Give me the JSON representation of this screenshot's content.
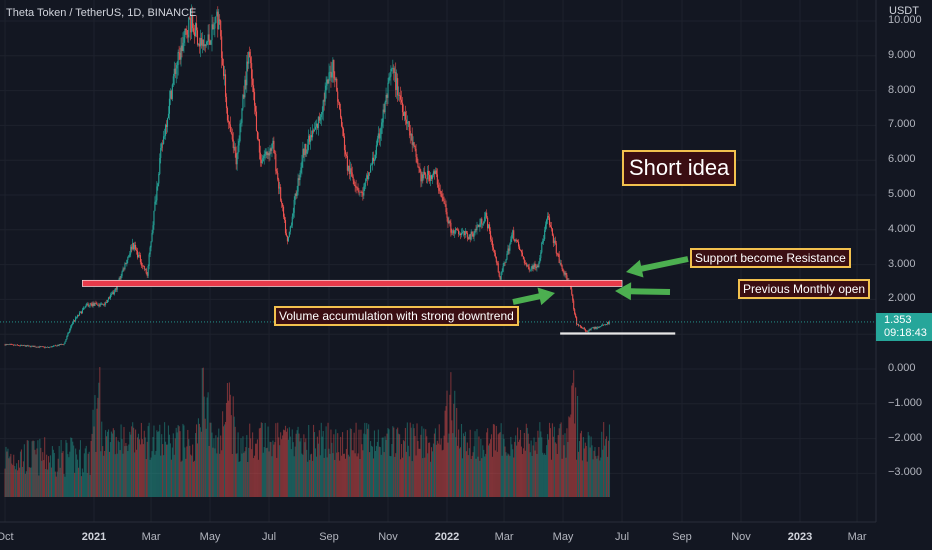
{
  "header": {
    "title": "Theta Token / TetherUS, 1D, BINANCE",
    "unit": "USDT"
  },
  "price_tag": {
    "value": "1.353",
    "countdown": "09:18:43"
  },
  "annotations": {
    "short_idea": "Short idea",
    "support_resistance": "Support become Resistance",
    "monthly_open": "Previous Monthly open",
    "volume_note": "Volume accumulation with strong downtrend"
  },
  "colors": {
    "background": "#131722",
    "up": "#26a69a",
    "down": "#ef5350",
    "resistance": "#e83a4a",
    "arrows": "#4caf50",
    "annotation_border": "#f2c14e"
  },
  "chart_data": {
    "type": "candlestick",
    "title": "Theta Token / TetherUS, 1D, BINANCE",
    "unit": "USDT",
    "yticks": [
      "10.000",
      "9.000",
      "8.000",
      "7.000",
      "6.000",
      "5.000",
      "4.000",
      "3.000",
      "2.000",
      "1.000",
      "0.000",
      "−1.000",
      "−2.000",
      "−3.000"
    ],
    "ylim": [
      -3.7,
      10.2
    ],
    "xticks": [
      {
        "label": "Oct",
        "bold": false
      },
      {
        "label": "2021",
        "bold": true
      },
      {
        "label": "Mar",
        "bold": false
      },
      {
        "label": "May",
        "bold": false
      },
      {
        "label": "Jul",
        "bold": false
      },
      {
        "label": "Sep",
        "bold": false
      },
      {
        "label": "Nov",
        "bold": false
      },
      {
        "label": "2022",
        "bold": true
      },
      {
        "label": "Mar",
        "bold": false
      },
      {
        "label": "May",
        "bold": false
      },
      {
        "label": "Jul",
        "bold": false
      },
      {
        "label": "Sep",
        "bold": false
      },
      {
        "label": "Nov",
        "bold": false
      },
      {
        "label": "2023",
        "bold": true
      },
      {
        "label": "Mar",
        "bold": false
      }
    ],
    "xtick_dates": [
      "2020-10-01",
      "2021-01-01",
      "2021-03-01",
      "2021-05-01",
      "2021-07-01",
      "2021-09-01",
      "2021-11-01",
      "2022-01-01",
      "2022-03-01",
      "2022-05-01",
      "2022-07-01",
      "2022-09-01",
      "2022-11-01",
      "2023-01-01",
      "2023-03-01"
    ],
    "price_path": [
      {
        "date": "2020-10-01",
        "price": 0.7
      },
      {
        "date": "2020-11-15",
        "price": 0.62
      },
      {
        "date": "2020-12-01",
        "price": 0.72
      },
      {
        "date": "2020-12-10",
        "price": 1.35
      },
      {
        "date": "2020-12-25",
        "price": 1.85
      },
      {
        "date": "2021-01-10",
        "price": 1.85
      },
      {
        "date": "2021-01-22",
        "price": 2.2
      },
      {
        "date": "2021-02-10",
        "price": 3.6
      },
      {
        "date": "2021-02-25",
        "price": 2.7
      },
      {
        "date": "2021-03-10",
        "price": 6.0
      },
      {
        "date": "2021-03-25",
        "price": 8.5
      },
      {
        "date": "2021-04-10",
        "price": 10.0
      },
      {
        "date": "2021-04-25",
        "price": 9.2
      },
      {
        "date": "2021-05-10",
        "price": 10.1
      },
      {
        "date": "2021-05-20",
        "price": 7.0
      },
      {
        "date": "2021-05-28",
        "price": 6.0
      },
      {
        "date": "2021-06-10",
        "price": 9.1
      },
      {
        "date": "2021-06-22",
        "price": 6.0
      },
      {
        "date": "2021-07-05",
        "price": 6.4
      },
      {
        "date": "2021-07-20",
        "price": 3.6
      },
      {
        "date": "2021-08-05",
        "price": 6.2
      },
      {
        "date": "2021-08-20",
        "price": 7.0
      },
      {
        "date": "2021-09-05",
        "price": 8.8
      },
      {
        "date": "2021-09-20",
        "price": 5.8
      },
      {
        "date": "2021-10-05",
        "price": 5.0
      },
      {
        "date": "2021-10-20",
        "price": 6.3
      },
      {
        "date": "2021-11-05",
        "price": 8.6
      },
      {
        "date": "2021-11-20",
        "price": 7.2
      },
      {
        "date": "2021-12-05",
        "price": 5.5
      },
      {
        "date": "2021-12-20",
        "price": 5.6
      },
      {
        "date": "2022-01-05",
        "price": 4.0
      },
      {
        "date": "2022-01-25",
        "price": 3.8
      },
      {
        "date": "2022-02-10",
        "price": 4.4
      },
      {
        "date": "2022-02-25",
        "price": 2.6
      },
      {
        "date": "2022-03-10",
        "price": 3.9
      },
      {
        "date": "2022-03-25",
        "price": 2.9
      },
      {
        "date": "2022-04-05",
        "price": 3.0
      },
      {
        "date": "2022-04-15",
        "price": 4.35
      },
      {
        "date": "2022-04-28",
        "price": 3.0
      },
      {
        "date": "2022-05-08",
        "price": 2.4
      },
      {
        "date": "2022-05-15",
        "price": 1.3
      },
      {
        "date": "2022-05-25",
        "price": 1.1
      },
      {
        "date": "2022-06-05",
        "price": 1.2
      },
      {
        "date": "2022-06-18",
        "price": 1.35
      }
    ],
    "current_price": 1.353,
    "volume": {
      "relative_scale": "volume pane bottom (~-3.7) to ~-0.3",
      "peaks_dates": [
        "2021-01-05",
        "2021-04-25",
        "2021-05-20",
        "2022-01-05",
        "2022-05-12"
      ]
    },
    "horizontal_lines": [
      {
        "name": "resistance-zone",
        "y_from": 2.37,
        "y_to": 2.55,
        "date_from": "2020-12-20",
        "date_to": "2022-07-01"
      },
      {
        "name": "support-line",
        "y": 1.02,
        "date_from": "2022-04-28",
        "date_to": "2022-08-25"
      }
    ]
  }
}
